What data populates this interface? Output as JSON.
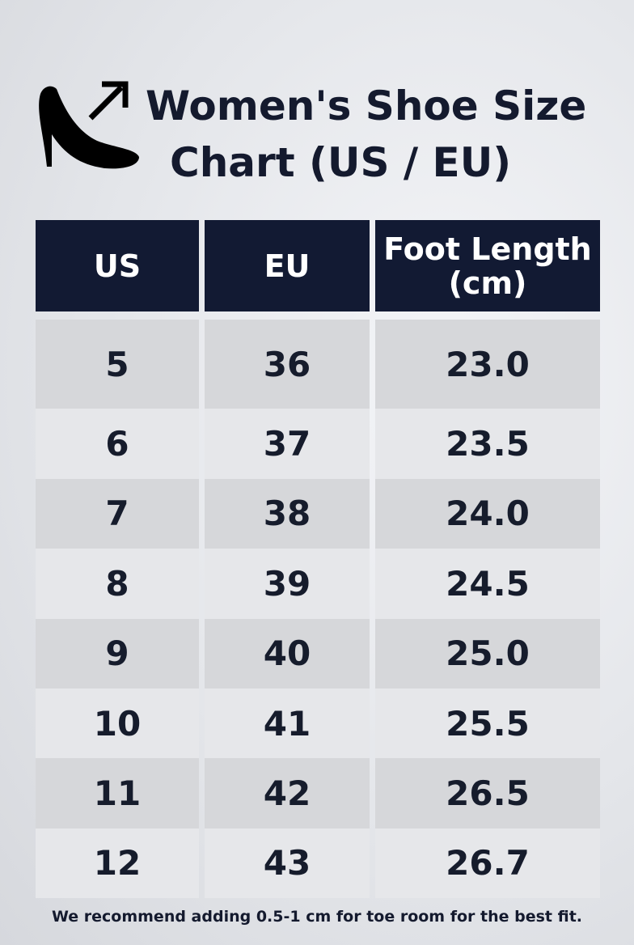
{
  "header": {
    "title_lines": [
      "Women's Shoe Size",
      "Chart (US / EU)"
    ]
  },
  "table": {
    "columns": [
      "US",
      "EU",
      "Foot Length (cm)"
    ],
    "rows": [
      [
        "5",
        "36",
        "23.0"
      ],
      [
        "6",
        "37",
        "23.5"
      ],
      [
        "7",
        "38",
        "24.0"
      ],
      [
        "8",
        "39",
        "24.5"
      ],
      [
        "9",
        "40",
        "25.0"
      ],
      [
        "10",
        "41",
        "25.5"
      ],
      [
        "11",
        "42",
        "26.5"
      ],
      [
        "12",
        "43",
        "26.7"
      ]
    ]
  },
  "footnote": "We recommend adding 0.5-1 cm for toe room for the best fit."
}
